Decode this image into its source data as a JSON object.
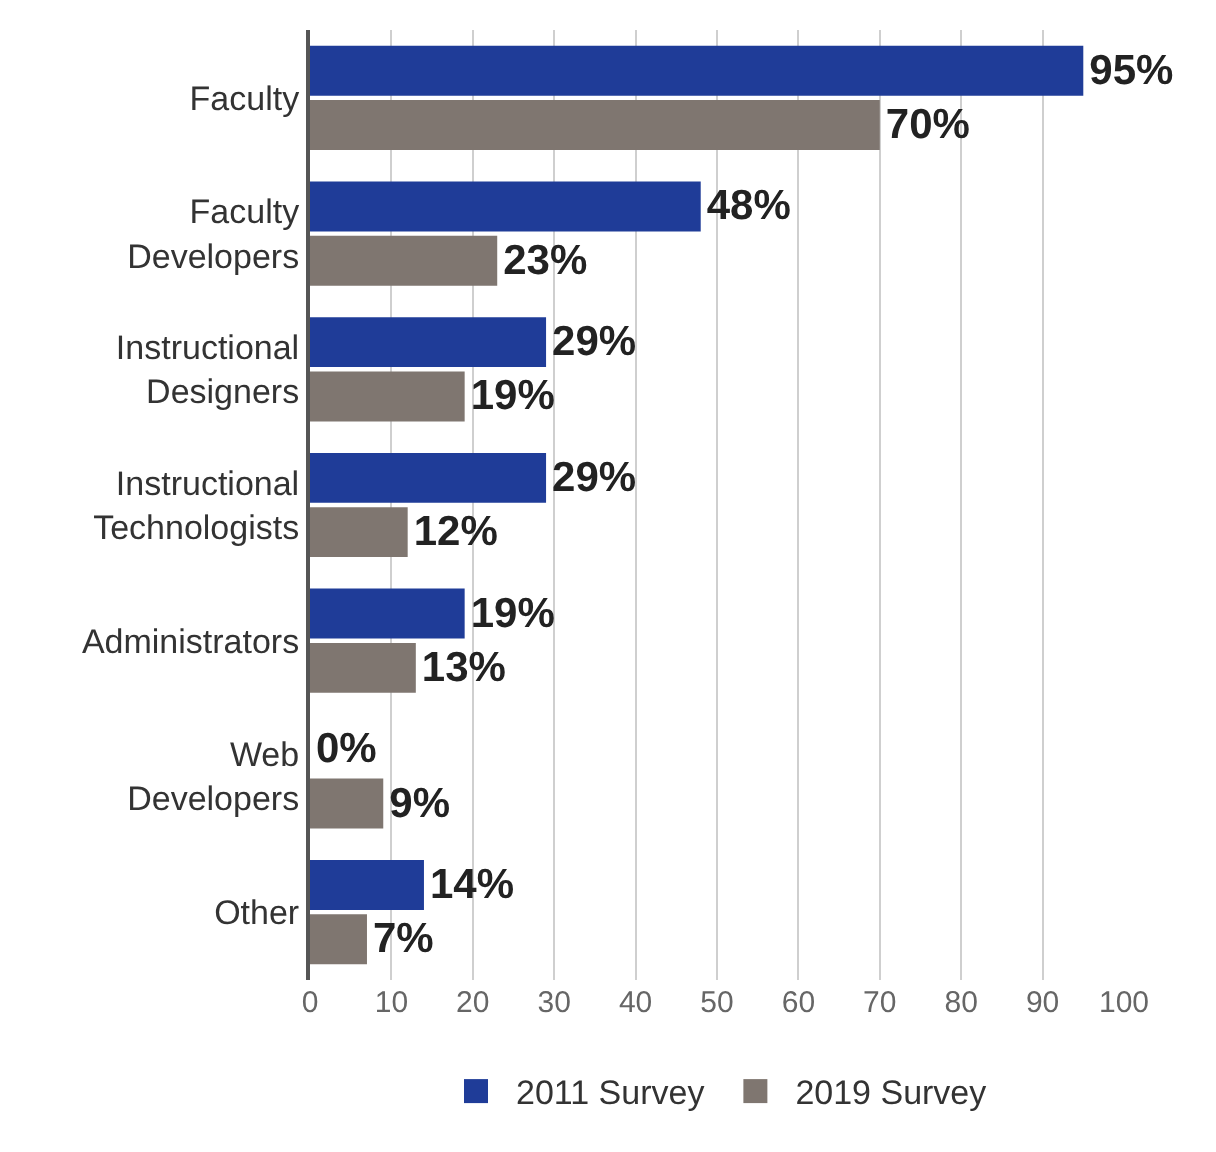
{
  "chart_data": {
    "type": "bar",
    "orientation": "horizontal",
    "categories": [
      "Faculty",
      "Faculty Developers",
      "Instructional Designers",
      "Instructional Technologists",
      "Administrators",
      "Web Developers",
      "Other"
    ],
    "series": [
      {
        "name": "2011 Survey",
        "color": "#1f3c98",
        "values": [
          95,
          48,
          29,
          29,
          19,
          0,
          14
        ],
        "value_labels": [
          "95%",
          "48%",
          "29%",
          "29%",
          "19%",
          "0%",
          "14%"
        ]
      },
      {
        "name": "2019 Survey",
        "color": "#7f7670",
        "values": [
          70,
          23,
          19,
          12,
          13,
          9,
          7
        ],
        "value_labels": [
          "70%",
          "23%",
          "19%",
          "12%",
          "13%",
          "9%",
          "7%"
        ]
      }
    ],
    "xlim": [
      0,
      100
    ],
    "xticks": [
      0,
      10,
      20,
      30,
      40,
      50,
      60,
      70,
      80,
      90,
      100
    ],
    "grid": "x",
    "legend": "bottom"
  }
}
